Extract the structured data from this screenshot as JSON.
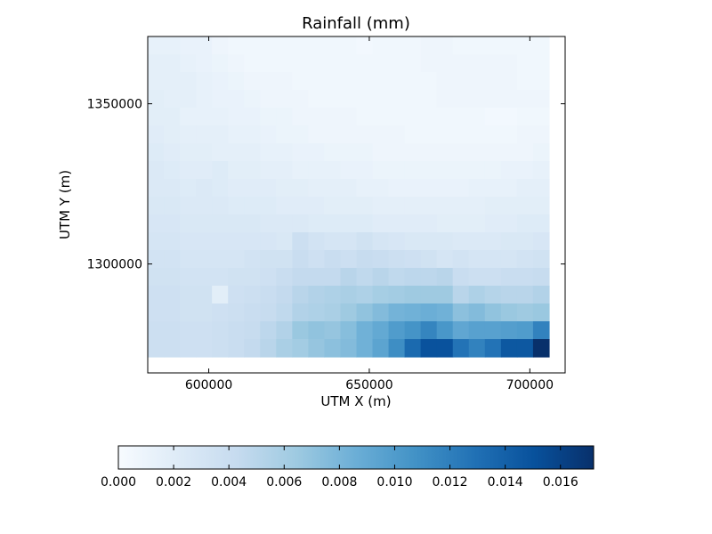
{
  "chart_data": {
    "type": "heatmap",
    "title": "Rainfall (mm)",
    "xlabel": "UTM X (m)",
    "ylabel": "UTM Y (m)",
    "xlim": [
      581000,
      711000
    ],
    "ylim": [
      1266000,
      1371000
    ],
    "x_extent": [
      581000,
      706000
    ],
    "y_extent": [
      1271000,
      1371000
    ],
    "x_ticks": [
      600000,
      650000,
      700000
    ],
    "y_ticks": [
      1300000,
      1350000
    ],
    "x_tick_labels": [
      "600000",
      "650000",
      "700000"
    ],
    "y_tick_labels": [
      "1300000",
      "1350000"
    ],
    "grid": false,
    "colormap": "Blues",
    "color_stops": [
      "#f7fbff",
      "#deebf7",
      "#c6dbef",
      "#9ecae1",
      "#6baed6",
      "#4292c6",
      "#2171b5",
      "#08519c",
      "#08306b"
    ],
    "colorbar": {
      "orientation": "horizontal",
      "min": 0,
      "max": 0.0172,
      "ticks": [
        0,
        0.002,
        0.004,
        0.006,
        0.008,
        0.01,
        0.012,
        0.014,
        0.016
      ],
      "tick_labels": [
        "0.000",
        "0.002",
        "0.004",
        "0.006",
        "0.008",
        "0.010",
        "0.012",
        "0.014",
        "0.016"
      ]
    },
    "grid_rows_top_to_bottom": [
      [
        0.0014,
        0.0014,
        0.0012,
        0.0012,
        0.0008,
        0.0006,
        0.0006,
        0.0006,
        0.0006,
        0.0006,
        0.0006,
        0.0006,
        0.0006,
        0.0004,
        0.0006,
        0.0006,
        0.0006,
        0.0008,
        0.0008,
        0.0006,
        0.0006,
        0.0006,
        0.0006,
        0.0006,
        0.0006
      ],
      [
        0.0016,
        0.0016,
        0.0014,
        0.0012,
        0.001,
        0.0008,
        0.0006,
        0.0006,
        0.0006,
        0.0006,
        0.0006,
        0.0006,
        0.0006,
        0.0006,
        0.0006,
        0.0006,
        0.0006,
        0.0008,
        0.0008,
        0.0008,
        0.0008,
        0.0008,
        0.0008,
        0.0006,
        0.0006
      ],
      [
        0.0016,
        0.0016,
        0.0016,
        0.0014,
        0.0012,
        0.001,
        0.0008,
        0.0008,
        0.0008,
        0.0006,
        0.0006,
        0.0006,
        0.0006,
        0.0006,
        0.0006,
        0.0006,
        0.0006,
        0.0006,
        0.0008,
        0.0008,
        0.0008,
        0.0008,
        0.0008,
        0.0006,
        0.0006
      ],
      [
        0.0018,
        0.0016,
        0.0016,
        0.0014,
        0.0012,
        0.0012,
        0.001,
        0.0008,
        0.0008,
        0.0008,
        0.0006,
        0.0006,
        0.0006,
        0.0006,
        0.0006,
        0.0006,
        0.0006,
        0.0006,
        0.0008,
        0.0008,
        0.0008,
        0.0008,
        0.0008,
        0.0008,
        0.0008
      ],
      [
        0.0018,
        0.0018,
        0.0014,
        0.0014,
        0.0014,
        0.0012,
        0.0012,
        0.001,
        0.001,
        0.0008,
        0.0008,
        0.0008,
        0.0008,
        0.0006,
        0.0006,
        0.0006,
        0.0006,
        0.0006,
        0.0006,
        0.0006,
        0.0006,
        0.0004,
        0.0004,
        0.0006,
        0.0006
      ],
      [
        0.002,
        0.0018,
        0.0016,
        0.0016,
        0.0016,
        0.0014,
        0.0014,
        0.0012,
        0.001,
        0.001,
        0.0008,
        0.0008,
        0.0008,
        0.0008,
        0.0008,
        0.0008,
        0.0006,
        0.0006,
        0.0006,
        0.0006,
        0.0006,
        0.0006,
        0.0006,
        0.0008,
        0.0008
      ],
      [
        0.0022,
        0.002,
        0.0018,
        0.0018,
        0.0016,
        0.0016,
        0.0016,
        0.0014,
        0.0014,
        0.0012,
        0.0012,
        0.001,
        0.001,
        0.001,
        0.0008,
        0.0008,
        0.0008,
        0.0008,
        0.0008,
        0.0008,
        0.0008,
        0.0008,
        0.0008,
        0.0008,
        0.001
      ],
      [
        0.0024,
        0.0022,
        0.002,
        0.002,
        0.0022,
        0.0018,
        0.0018,
        0.0016,
        0.0016,
        0.0014,
        0.0014,
        0.0014,
        0.0012,
        0.0012,
        0.001,
        0.001,
        0.001,
        0.001,
        0.001,
        0.001,
        0.001,
        0.001,
        0.0012,
        0.0012,
        0.0014
      ],
      [
        0.0024,
        0.0024,
        0.0022,
        0.0024,
        0.0022,
        0.002,
        0.002,
        0.002,
        0.0018,
        0.0018,
        0.0016,
        0.0016,
        0.0016,
        0.0014,
        0.0014,
        0.0012,
        0.0012,
        0.0012,
        0.0012,
        0.0012,
        0.0014,
        0.0014,
        0.0014,
        0.0016,
        0.0016
      ],
      [
        0.0026,
        0.0026,
        0.0024,
        0.0024,
        0.0024,
        0.0022,
        0.0022,
        0.0022,
        0.002,
        0.002,
        0.002,
        0.0018,
        0.0018,
        0.0018,
        0.0016,
        0.0016,
        0.0016,
        0.0016,
        0.0016,
        0.0016,
        0.0016,
        0.0018,
        0.0018,
        0.0018,
        0.0018
      ],
      [
        0.0028,
        0.0028,
        0.0026,
        0.0026,
        0.0026,
        0.0026,
        0.0026,
        0.0024,
        0.0024,
        0.0024,
        0.0022,
        0.0022,
        0.0022,
        0.0022,
        0.002,
        0.002,
        0.002,
        0.002,
        0.0018,
        0.0018,
        0.0018,
        0.002,
        0.002,
        0.0022,
        0.0022
      ],
      [
        0.003,
        0.003,
        0.0028,
        0.0028,
        0.0028,
        0.0028,
        0.0028,
        0.0028,
        0.0026,
        0.0038,
        0.0032,
        0.003,
        0.003,
        0.0034,
        0.003,
        0.0028,
        0.0026,
        0.0026,
        0.0026,
        0.0024,
        0.0024,
        0.0024,
        0.0026,
        0.0026,
        0.0028
      ],
      [
        0.0032,
        0.0032,
        0.003,
        0.003,
        0.003,
        0.003,
        0.0032,
        0.0034,
        0.0034,
        0.004,
        0.0036,
        0.004,
        0.0038,
        0.0042,
        0.004,
        0.0038,
        0.0036,
        0.0034,
        0.003,
        0.0032,
        0.003,
        0.003,
        0.003,
        0.0032,
        0.0034
      ],
      [
        0.0034,
        0.0034,
        0.0032,
        0.0032,
        0.0032,
        0.0034,
        0.0034,
        0.0036,
        0.004,
        0.0044,
        0.0044,
        0.0044,
        0.005,
        0.0046,
        0.005,
        0.0046,
        0.0048,
        0.0048,
        0.005,
        0.004,
        0.0038,
        0.0038,
        0.004,
        0.004,
        0.0042
      ],
      [
        0.0036,
        0.0036,
        0.0034,
        0.0034,
        0.0018,
        0.0036,
        0.0038,
        0.004,
        0.0044,
        0.005,
        0.0054,
        0.0056,
        0.0058,
        0.0056,
        0.006,
        0.0062,
        0.0064,
        0.0064,
        0.0064,
        0.005,
        0.0056,
        0.0052,
        0.005,
        0.005,
        0.0054
      ],
      [
        0.0036,
        0.0036,
        0.0034,
        0.0034,
        0.0036,
        0.0038,
        0.004,
        0.0042,
        0.0046,
        0.0054,
        0.0056,
        0.0058,
        0.0064,
        0.007,
        0.0076,
        0.0082,
        0.0084,
        0.0086,
        0.0084,
        0.0072,
        0.0076,
        0.007,
        0.0066,
        0.0064,
        0.0066
      ],
      [
        0.0038,
        0.0038,
        0.0036,
        0.0036,
        0.0038,
        0.004,
        0.0042,
        0.0048,
        0.0054,
        0.0066,
        0.007,
        0.0068,
        0.0074,
        0.0084,
        0.009,
        0.01,
        0.0106,
        0.0116,
        0.0104,
        0.0092,
        0.0096,
        0.0096,
        0.0098,
        0.01,
        0.0118
      ],
      [
        0.0038,
        0.0038,
        0.0036,
        0.0036,
        0.0038,
        0.004,
        0.0044,
        0.005,
        0.0058,
        0.0062,
        0.0068,
        0.0072,
        0.0076,
        0.0084,
        0.0094,
        0.011,
        0.0134,
        0.015,
        0.015,
        0.0128,
        0.0118,
        0.0128,
        0.0146,
        0.0146,
        0.0172
      ]
    ]
  }
}
